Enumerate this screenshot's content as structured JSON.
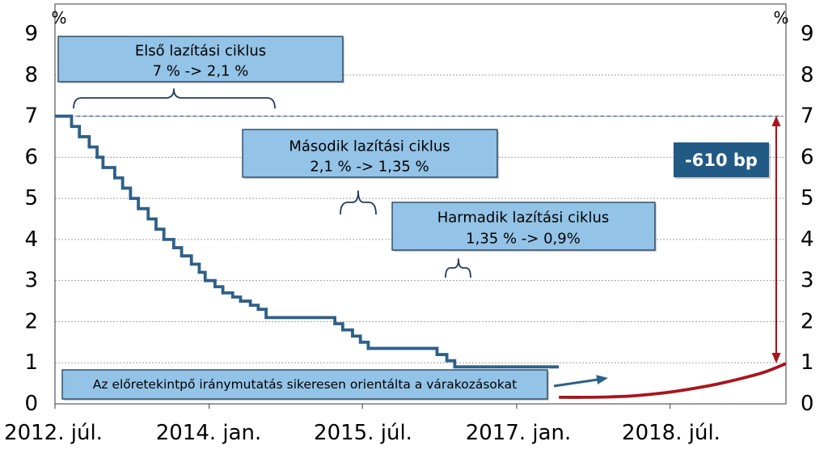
{
  "chart_data": {
    "type": "line",
    "ylabel": "%",
    "ylabel_right": "%",
    "xlim": [
      "2012-07-01",
      "2019-08-18"
    ],
    "ylim": [
      0,
      9
    ],
    "yticks": [
      0,
      1,
      2,
      3,
      4,
      5,
      6,
      7,
      8,
      9
    ],
    "xticks": [
      "2012. júl.",
      "2014. jan.",
      "2015. júl.",
      "2017. jan.",
      "2018. júl."
    ],
    "grid": true,
    "legend": "none",
    "series": [
      {
        "color": "#2e6088",
        "line": "step",
        "points": [
          [
            "2012-07-01",
            7
          ],
          [
            "2012-08-29",
            6.75
          ],
          [
            "2012-09-26",
            6.5
          ],
          [
            "2012-10-31",
            6.25
          ],
          [
            "2012-11-28",
            6
          ],
          [
            "2012-12-19",
            5.75
          ],
          [
            "2013-01-30",
            5.5
          ],
          [
            "2013-02-27",
            5.25
          ],
          [
            "2013-03-27",
            5
          ],
          [
            "2013-04-24",
            4.75
          ],
          [
            "2013-05-29",
            4.5
          ],
          [
            "2013-06-26",
            4.25
          ],
          [
            "2013-07-24",
            4
          ],
          [
            "2013-08-28",
            3.8
          ],
          [
            "2013-09-25",
            3.6
          ],
          [
            "2013-10-30",
            3.4
          ],
          [
            "2013-11-27",
            3.2
          ],
          [
            "2013-12-18",
            3
          ],
          [
            "2014-01-22",
            2.85
          ],
          [
            "2014-02-19",
            2.7
          ],
          [
            "2014-03-26",
            2.6
          ],
          [
            "2014-04-23",
            2.5
          ],
          [
            "2014-05-28",
            2.4
          ],
          [
            "2014-06-25",
            2.3
          ],
          [
            "2014-07-23",
            2.1
          ],
          [
            "2015-03-25",
            1.95
          ],
          [
            "2015-04-22",
            1.8
          ],
          [
            "2015-05-27",
            1.65
          ],
          [
            "2015-06-24",
            1.5
          ],
          [
            "2015-07-22",
            1.35
          ],
          [
            "2016-03-23",
            1.2
          ],
          [
            "2016-04-27",
            1.05
          ],
          [
            "2016-05-25",
            0.9
          ],
          [
            "2017-05-31",
            0.9
          ]
        ]
      },
      {
        "color": "#a8151c",
        "line": "smooth",
        "points": [
          [
            "2017-05-31",
            0.16
          ],
          [
            "2017-09-01",
            0.16
          ],
          [
            "2017-12-01",
            0.17
          ],
          [
            "2018-03-01",
            0.2
          ],
          [
            "2018-06-01",
            0.26
          ],
          [
            "2018-09-01",
            0.35
          ],
          [
            "2018-12-01",
            0.46
          ],
          [
            "2019-03-01",
            0.6
          ],
          [
            "2019-06-01",
            0.77
          ],
          [
            "2019-08-18",
            0.98
          ]
        ]
      }
    ],
    "reference_lines": [
      {
        "y": 7,
        "from": "2012-09-15",
        "to": "2019-08-06",
        "style": "dashed",
        "color": "#3b6a93"
      }
    ],
    "annotations": {
      "cycle_1": {
        "title": "Első lazítási ciklus",
        "change": "7 % -> 2,1 %"
      },
      "cycle_2": {
        "title": "Második lazítási ciklus",
        "change": "2,1 % -> 1,35 %"
      },
      "cycle_3": {
        "title": "Harmadik lazítási ciklus",
        "change": "1,35 % -> 0,9%"
      },
      "total_change": "-610 bp",
      "guidance_note": "Az előretekintpő iránymutatás sikeresen orientálta a várakozásokat"
    }
  },
  "colors": {
    "box_fill": "#93c3e6",
    "badge_fill": "#205a85",
    "arrow_red": "#a8151c",
    "arrow_blue": "#2e6088",
    "brace": "#1e3a66"
  }
}
